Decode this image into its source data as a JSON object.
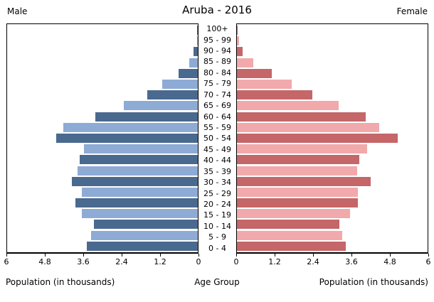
{
  "header": {
    "title": "Aruba - 2016",
    "male_label": "Male",
    "female_label": "Female"
  },
  "footer": {
    "left_xlabel": "Population (in thousands)",
    "center_xlabel": "Age Group",
    "right_xlabel": "Population (in thousands)"
  },
  "colors": {
    "male_dark": "#4a698f",
    "male_light": "#8dabd4",
    "female_dark": "#c56668",
    "female_light": "#f1a9ac",
    "axis": "#000000",
    "background": "#ffffff"
  },
  "chart_data": {
    "type": "bar",
    "subtype": "population-pyramid",
    "title": "Aruba - 2016",
    "x_axis": {
      "label": "Population (in thousands)",
      "ticks": [
        0,
        1.2,
        2.4,
        3.6,
        4.8,
        6
      ],
      "max": 6,
      "mirrored": true
    },
    "y_axis_label": "Age Group",
    "grid": false,
    "legend": "none",
    "categories_top_to_bottom": [
      "100+",
      "95 - 99",
      "90 - 94",
      "85 - 89",
      "80 - 84",
      "75 - 79",
      "70 - 74",
      "65 - 69",
      "60 - 64",
      "55 - 59",
      "50 - 54",
      "45 - 49",
      "40 - 44",
      "35 - 39",
      "30 - 34",
      "25 - 29",
      "20 - 24",
      "15 - 19",
      "10 - 14",
      "5 - 9",
      "0 - 4"
    ],
    "series": [
      {
        "name": "Male",
        "side": "left",
        "values_top_to_bottom": [
          0.02,
          0.03,
          0.13,
          0.26,
          0.61,
          1.11,
          1.58,
          2.33,
          3.22,
          4.23,
          4.46,
          3.59,
          3.71,
          3.79,
          3.96,
          3.66,
          3.85,
          3.64,
          3.26,
          3.35,
          3.49
        ]
      },
      {
        "name": "Female",
        "side": "right",
        "values_top_to_bottom": [
          0.03,
          0.06,
          0.18,
          0.51,
          1.09,
          1.72,
          2.37,
          3.21,
          4.06,
          4.47,
          5.05,
          4.1,
          3.84,
          3.79,
          4.22,
          3.81,
          3.8,
          3.55,
          3.23,
          3.31,
          3.43
        ]
      }
    ]
  }
}
